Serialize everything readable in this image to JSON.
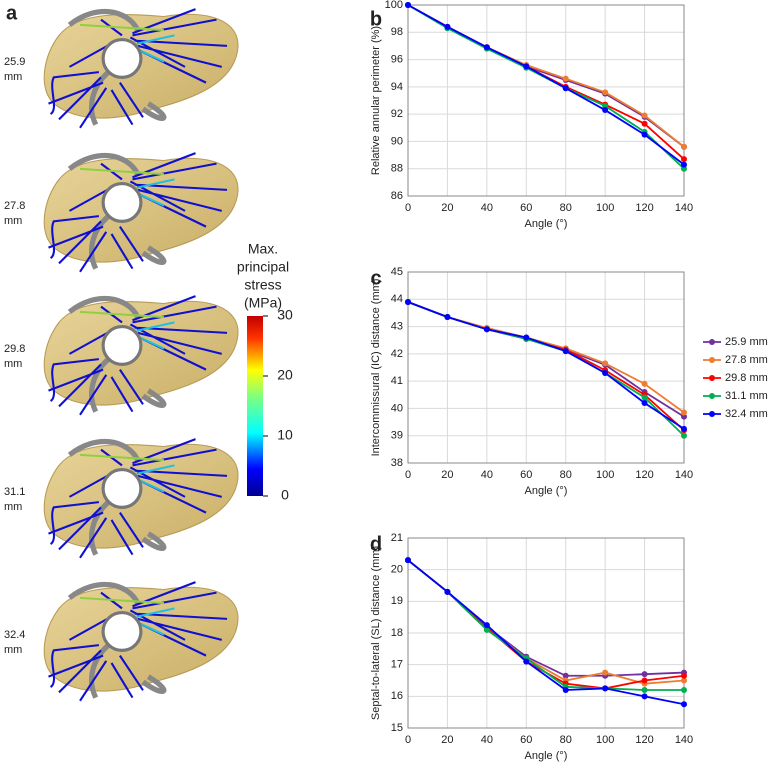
{
  "panel_a": {
    "label": "a",
    "models": [
      {
        "lines": [
          "25.9",
          "mm"
        ]
      },
      {
        "lines": [
          "27.8",
          "mm"
        ]
      },
      {
        "lines": [
          "29.8",
          "mm"
        ]
      },
      {
        "lines": [
          "31.1",
          "mm"
        ]
      },
      {
        "lines": [
          "32.4",
          "mm"
        ]
      }
    ]
  },
  "colorbar": {
    "title_lines": [
      "Max.",
      "principal",
      "stress",
      "(MPa)"
    ],
    "lim": [
      0,
      30
    ],
    "ticks": [
      0,
      10,
      20,
      30
    ]
  },
  "chart_data": [
    {
      "type": "line",
      "panel": "b",
      "y_label": "Relative annular perimeter (%)",
      "x_label": "Angle (°)",
      "x": [
        0,
        20,
        40,
        60,
        80,
        100,
        120,
        140
      ],
      "xlim": [
        0,
        140
      ],
      "xticks": [
        0,
        20,
        40,
        60,
        80,
        100,
        120,
        140
      ],
      "ylim": [
        86,
        100
      ],
      "yticks": [
        86,
        88,
        90,
        92,
        94,
        96,
        98,
        100
      ],
      "grid": true,
      "series": [
        {
          "name": "25.9 mm",
          "color": "#7030a0",
          "values": [
            100,
            98.4,
            96.9,
            95.5,
            94.5,
            93.5,
            91.8,
            89.6
          ]
        },
        {
          "name": "27.8 mm",
          "color": "#ed7d31",
          "values": [
            100,
            98.4,
            96.9,
            95.6,
            94.6,
            93.6,
            91.9,
            89.6
          ]
        },
        {
          "name": "29.8 mm",
          "color": "#ff0000",
          "values": [
            100,
            98.4,
            96.9,
            95.5,
            94.0,
            92.7,
            91.3,
            88.7
          ]
        },
        {
          "name": "31.1 mm",
          "color": "#00b050",
          "values": [
            100,
            98.3,
            96.8,
            95.4,
            93.9,
            92.6,
            90.7,
            88.0
          ]
        },
        {
          "name": "32.4 mm",
          "color": "#0000ff",
          "values": [
            100,
            98.4,
            96.9,
            95.5,
            93.9,
            92.3,
            90.5,
            88.3
          ]
        }
      ]
    },
    {
      "type": "line",
      "panel": "c",
      "y_label": "Intercommissural (IC) distance (mm)",
      "x_label": "Angle (°)",
      "x": [
        0,
        20,
        40,
        60,
        80,
        100,
        120,
        140
      ],
      "xlim": [
        0,
        140
      ],
      "xticks": [
        0,
        20,
        40,
        60,
        80,
        100,
        120,
        140
      ],
      "ylim": [
        38,
        45
      ],
      "yticks": [
        38,
        39,
        40,
        41,
        42,
        43,
        44,
        45
      ],
      "grid": true,
      "series": [
        {
          "name": "25.9 mm",
          "color": "#7030a0",
          "values": [
            43.9,
            43.35,
            42.9,
            42.55,
            42.15,
            41.6,
            40.6,
            39.7
          ]
        },
        {
          "name": "27.8 mm",
          "color": "#ed7d31",
          "values": [
            43.9,
            43.35,
            42.95,
            42.6,
            42.2,
            41.65,
            40.9,
            39.85
          ]
        },
        {
          "name": "29.8 mm",
          "color": "#ff0000",
          "values": [
            43.9,
            43.35,
            42.9,
            42.55,
            42.15,
            41.4,
            40.5,
            39.2
          ]
        },
        {
          "name": "31.1 mm",
          "color": "#00b050",
          "values": [
            43.9,
            43.35,
            42.9,
            42.55,
            42.1,
            41.3,
            40.4,
            39.0
          ]
        },
        {
          "name": "32.4 mm",
          "color": "#0000ff",
          "values": [
            43.9,
            43.35,
            42.9,
            42.6,
            42.1,
            41.3,
            40.2,
            39.25
          ]
        }
      ]
    },
    {
      "type": "line",
      "panel": "d",
      "y_label": "Septal-to-lateral (SL) distance (mm)",
      "x_label": "Angle (°)",
      "x": [
        0,
        20,
        40,
        60,
        80,
        100,
        120,
        140
      ],
      "xlim": [
        0,
        140
      ],
      "xticks": [
        0,
        20,
        40,
        60,
        80,
        100,
        120,
        140
      ],
      "ylim": [
        15,
        21
      ],
      "yticks": [
        15,
        16,
        17,
        18,
        19,
        20,
        21
      ],
      "grid": true,
      "series": [
        {
          "name": "25.9 mm",
          "color": "#7030a0",
          "values": [
            20.3,
            19.3,
            18.2,
            17.25,
            16.65,
            16.65,
            16.7,
            16.75
          ]
        },
        {
          "name": "27.8 mm",
          "color": "#ed7d31",
          "values": [
            20.3,
            19.3,
            18.15,
            17.2,
            16.5,
            16.75,
            16.4,
            16.5
          ]
        },
        {
          "name": "29.8 mm",
          "color": "#ff0000",
          "values": [
            20.3,
            19.3,
            18.15,
            17.1,
            16.4,
            16.25,
            16.5,
            16.65
          ]
        },
        {
          "name": "31.1 mm",
          "color": "#00b050",
          "values": [
            20.3,
            19.3,
            18.1,
            17.2,
            16.3,
            16.25,
            16.2,
            16.2
          ]
        },
        {
          "name": "32.4 mm",
          "color": "#0000ff",
          "values": [
            20.3,
            19.3,
            18.25,
            17.1,
            16.2,
            16.25,
            16.0,
            15.75
          ]
        }
      ]
    }
  ]
}
